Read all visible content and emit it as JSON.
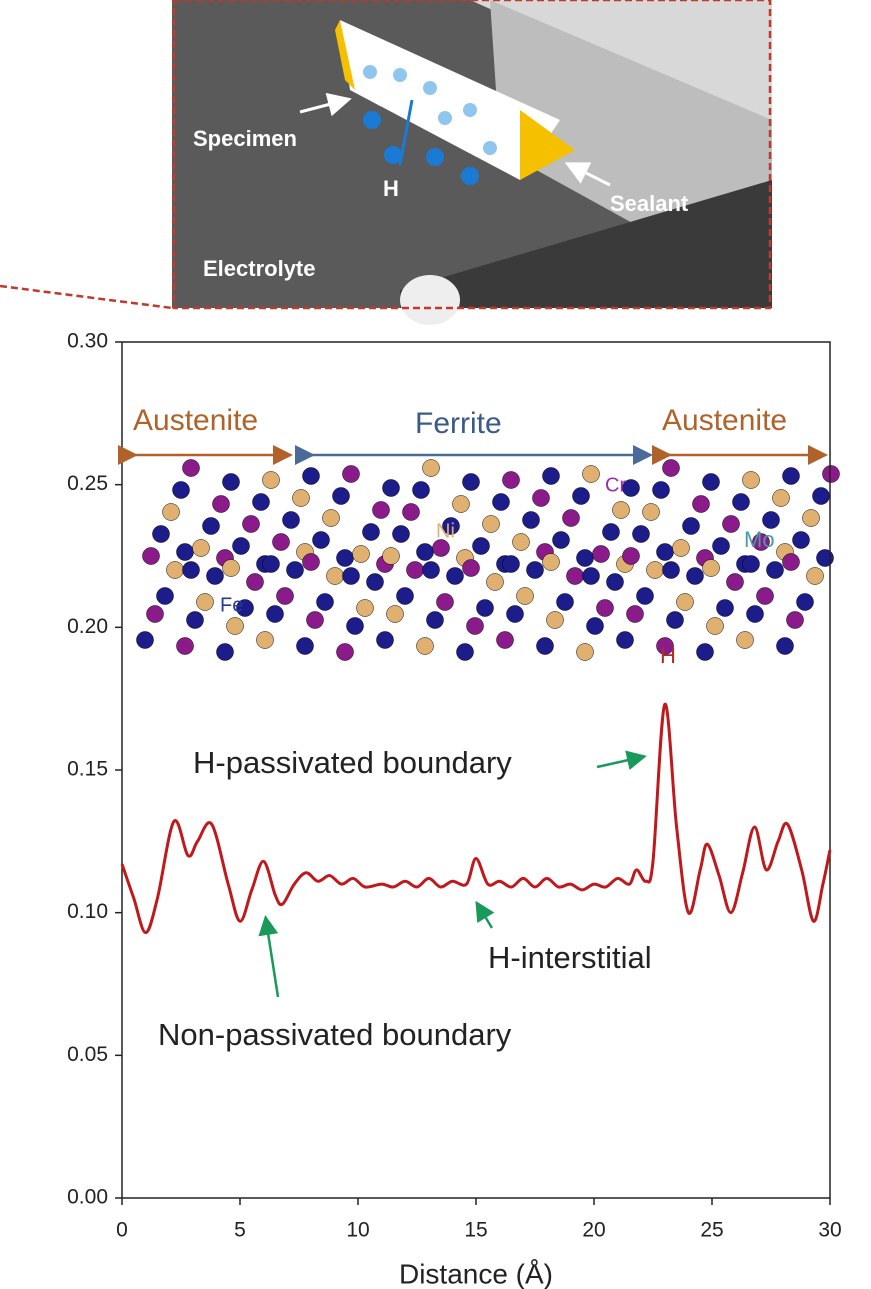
{
  "inset": {
    "labels": [
      "Specimen",
      "H",
      "Sealant",
      "Electrolyte"
    ]
  },
  "chart_data": {
    "type": "line",
    "xlabel": "Distance (Å)",
    "regions": [
      "Austenite",
      "Ferrite",
      "Austenite"
    ],
    "element_labels": [
      "Cr",
      "Ni",
      "Mo",
      "Fe",
      "H"
    ],
    "annotations": [
      "H-passivated boundary",
      "H-interstitial",
      "Non-passivated boundary"
    ],
    "xlim": [
      0,
      30
    ],
    "xticks": [
      0,
      5,
      10,
      15,
      20,
      25,
      30
    ],
    "ylim": [
      0,
      0.3
    ],
    "yticks": [
      {
        "value": 0,
        "label": "0.00"
      },
      {
        "value": 0.05,
        "label": "0.05"
      },
      {
        "value": 0.1,
        "label": "0.10"
      },
      {
        "value": 0.15,
        "label": "0.15"
      },
      {
        "value": 0.2,
        "label": "0.20"
      },
      {
        "value": 0.25,
        "label": "0.25"
      },
      {
        "value": 0.3,
        "label": "0.30"
      }
    ],
    "series": [
      {
        "color": "#c0191c",
        "x": [
          0,
          0.5,
          1,
          1.5,
          2.2,
          2.8,
          3.2,
          3.8,
          4.5,
          5,
          5.5,
          6,
          6.5,
          6.8,
          7.3,
          7.8,
          8.3,
          8.8,
          9.3,
          9.8,
          10.3,
          11,
          11.5,
          12,
          12.5,
          13,
          13.5,
          14,
          14.6,
          15,
          15.5,
          16,
          16.5,
          17,
          17.5,
          18,
          18.5,
          19,
          19.5,
          20,
          20.5,
          21,
          21.5,
          21.8,
          22.2,
          22.5,
          23,
          23.5,
          24,
          24.5,
          24.8,
          25.3,
          25.8,
          26.3,
          26.8,
          27.3,
          27.8,
          28.2,
          28.8,
          29.3,
          29.7,
          30
        ],
        "values": [
          0.117,
          0.105,
          0.093,
          0.105,
          0.132,
          0.12,
          0.125,
          0.131,
          0.11,
          0.097,
          0.108,
          0.118,
          0.106,
          0.103,
          0.11,
          0.114,
          0.111,
          0.113,
          0.11,
          0.112,
          0.109,
          0.11,
          0.109,
          0.111,
          0.109,
          0.112,
          0.109,
          0.111,
          0.11,
          0.119,
          0.11,
          0.111,
          0.109,
          0.112,
          0.109,
          0.112,
          0.109,
          0.11,
          0.108,
          0.11,
          0.109,
          0.112,
          0.11,
          0.115,
          0.111,
          0.118,
          0.173,
          0.13,
          0.1,
          0.115,
          0.124,
          0.113,
          0.1,
          0.114,
          0.13,
          0.115,
          0.125,
          0.131,
          0.115,
          0.097,
          0.11,
          0.122
        ]
      }
    ]
  }
}
